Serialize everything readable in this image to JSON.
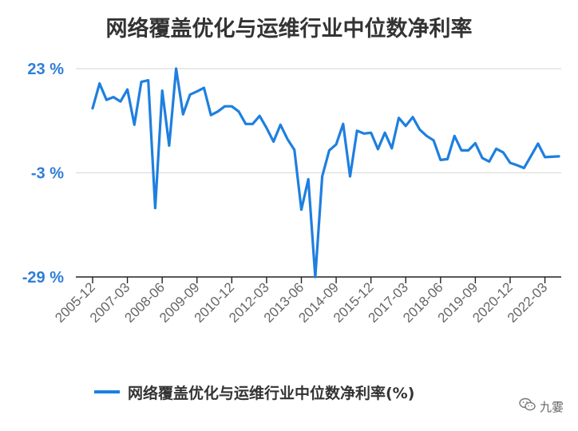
{
  "title": "网络覆盖优化与运维行业中位数净利率",
  "watermark": {
    "text": "九霎",
    "icon": "wechat-icon"
  },
  "colors": {
    "line": "#1e7fe0",
    "ytick": "#2f7ed8",
    "grid": "#dddddd",
    "axis": "#222222"
  },
  "chart_data": {
    "type": "line",
    "title": "网络覆盖优化与运维行业中位数净利率",
    "ylim": [
      -29,
      23
    ],
    "yticks": [
      23,
      -3,
      -29
    ],
    "ytick_labels": [
      "23 %",
      "-3 %",
      "-29 %"
    ],
    "x_tick_labels": [
      "2005-12",
      "2007-03",
      "2008-06",
      "2009-09",
      "2010-12",
      "2012-03",
      "2013-06",
      "2014-09",
      "2015-12",
      "2017-03",
      "2018-06",
      "2019-09",
      "2020-12",
      "2022-03"
    ],
    "grid": true,
    "legend": "bottom",
    "series": [
      {
        "name": "网络覆盖优化与运维行业中位数净利率(%)",
        "x": [
          "2005-12",
          "2006-03",
          "2006-06",
          "2006-09",
          "2006-12",
          "2007-03",
          "2007-06",
          "2007-09",
          "2007-12",
          "2008-03",
          "2008-06",
          "2008-09",
          "2008-12",
          "2009-03",
          "2009-06",
          "2009-09",
          "2009-12",
          "2010-03",
          "2010-06",
          "2010-09",
          "2010-12",
          "2011-03",
          "2011-06",
          "2011-09",
          "2011-12",
          "2012-03",
          "2012-06",
          "2012-09",
          "2012-12",
          "2013-03",
          "2013-06",
          "2013-09",
          "2013-12",
          "2014-03",
          "2014-06",
          "2014-09",
          "2014-12",
          "2015-03",
          "2015-06",
          "2015-09",
          "2015-12",
          "2016-03",
          "2016-06",
          "2016-09",
          "2016-12",
          "2017-03",
          "2017-06",
          "2017-09",
          "2017-12",
          "2018-03",
          "2018-06",
          "2018-09",
          "2018-12",
          "2019-03",
          "2019-06",
          "2019-09",
          "2019-12",
          "2020-03",
          "2020-06",
          "2020-09",
          "2020-12",
          "2021-03",
          "2021-06",
          "2021-09",
          "2021-12",
          "2022-03",
          "2022-06",
          "2022-09"
        ],
        "values": [
          13.1,
          19.3,
          15.2,
          15.9,
          14.8,
          17.8,
          9.0,
          19.7,
          20.1,
          -11.8,
          17.5,
          3.8,
          23.0,
          11.6,
          16.5,
          17.3,
          18.2,
          11.4,
          12.3,
          13.6,
          13.6,
          12.3,
          9.2,
          9.2,
          11.2,
          8.2,
          4.8,
          9.0,
          5.4,
          2.7,
          -12.2,
          -4.6,
          -29.0,
          -3.9,
          2.6,
          4.1,
          9.2,
          -3.9,
          7.5,
          6.8,
          7.0,
          2.9,
          7.0,
          3.1,
          10.7,
          8.7,
          10.9,
          7.8,
          6.2,
          5.1,
          0.2,
          0.4,
          6.2,
          2.6,
          2.6,
          4.4,
          0.7,
          -0.2,
          3.0,
          2.1,
          -0.5,
          -1.1,
          -1.8,
          1.2,
          4.3,
          0.9,
          1.0,
          1.1
        ]
      }
    ]
  }
}
